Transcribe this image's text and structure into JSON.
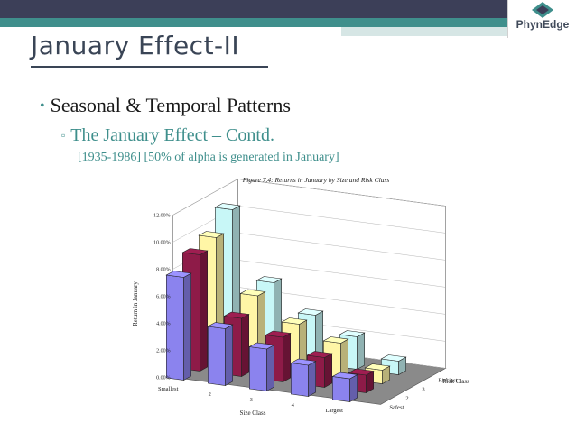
{
  "slide": {
    "title": "January Effect-II",
    "bullet1": "Seasonal & Temporal Patterns",
    "bullet2": "The January Effect – Contd.",
    "note": "[1935-1986] [50% of alpha is generated in January]",
    "logo": "PhynEdge"
  },
  "colors": {
    "topbar": "#3c3f58",
    "accent": "#3f8f8c",
    "title": "#3a4556",
    "risk_class_1": "#8b83ee",
    "risk_class_2": "#8e1b48",
    "risk_class_3": "#fff6a6",
    "riskiest": "#c8f7f7"
  },
  "chart_data": {
    "type": "bar",
    "title": "Figure 7.4: Returns in January by Size and Risk Class",
    "ylabel": "Return in January",
    "xlabel": "Size Class",
    "zlabel": "Risk Class",
    "ylim": [
      0,
      12
    ],
    "yticks": [
      "0.00%",
      "2.00%",
      "4.00%",
      "6.00%",
      "8.00%",
      "10.00%",
      "12.00%"
    ],
    "size_categories": [
      "Smallest",
      "2",
      "3",
      "4",
      "Largest"
    ],
    "risk_categories": [
      "Safest",
      "2",
      "3",
      "Riskiest"
    ],
    "series": [
      {
        "values": [
          7.6,
          4.2,
          3.1,
          2.3,
          1.7
        ]
      },
      {
        "values": [
          8.6,
          4.3,
          3.3,
          2.2,
          1.3
        ]
      },
      {
        "values": [
          9.2,
          5.3,
          3.6,
          2.6,
          1.0
        ]
      },
      {
        "values": [
          10.6,
          5.6,
          3.6,
          2.4,
          1.0
        ]
      }
    ]
  }
}
